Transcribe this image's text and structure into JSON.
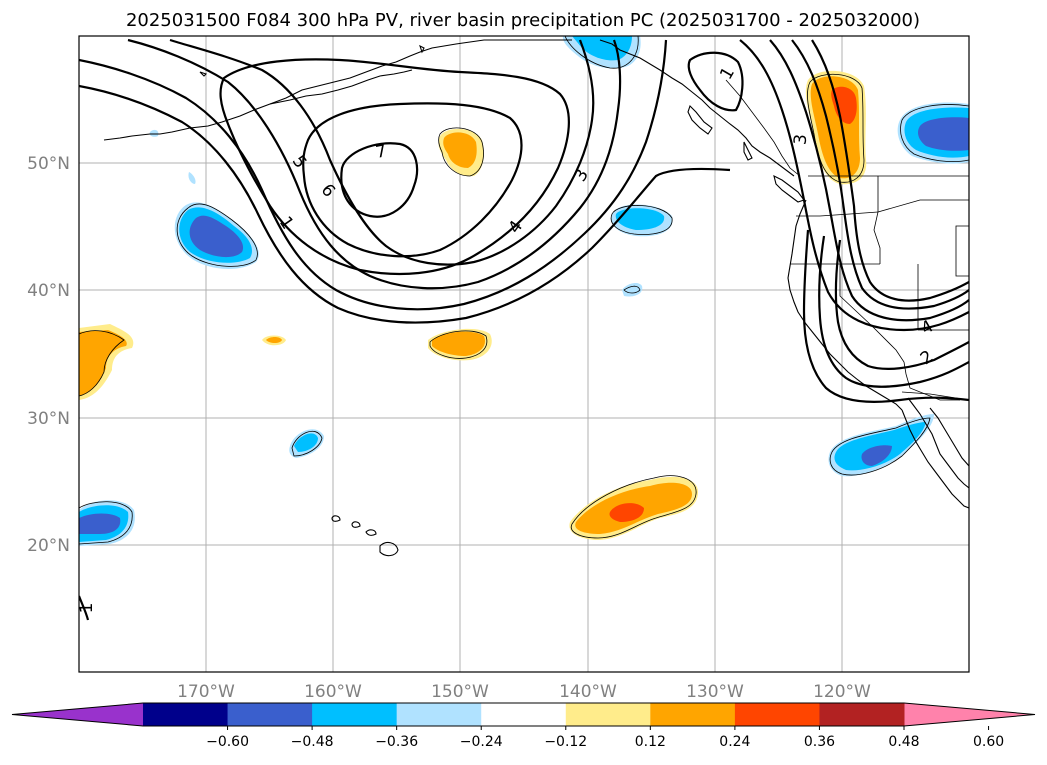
{
  "title": "2025031500 F084 300 hPa PV, river basin precipitation PC (2025031700 - 2025032000)",
  "map": {
    "lon_range": [
      -180,
      -110
    ],
    "lat_range": [
      10,
      60
    ],
    "lat_ticks": [
      {
        "value": 20,
        "label": "20°N"
      },
      {
        "value": 30,
        "label": "30°N"
      },
      {
        "value": 40,
        "label": "40°N"
      },
      {
        "value": 50,
        "label": "50°N"
      }
    ],
    "lon_ticks": [
      {
        "value": -170,
        "label": "170°W"
      },
      {
        "value": -160,
        "label": "160°W"
      },
      {
        "value": -150,
        "label": "150°W"
      },
      {
        "value": -140,
        "label": "140°W"
      },
      {
        "value": -130,
        "label": "130°W"
      },
      {
        "value": -120,
        "label": "120°W"
      }
    ],
    "grid": true
  },
  "pv_contour_labels": [
    "7",
    "6",
    "5",
    "4",
    "3",
    "3",
    "2",
    "1",
    "1",
    "1",
    "4"
  ],
  "colorbar": {
    "colors": [
      "#9932cc",
      "#00008b",
      "#3a5fcd",
      "#00bfff",
      "#b0e2ff",
      "#ffffff",
      "#ffec8b",
      "#ffa500",
      "#ff4500",
      "#b22222",
      "#ff82ab"
    ],
    "tick_labels": [
      "−0.60",
      "−0.48",
      "−0.36",
      "−0.24",
      "−0.12",
      "0.12",
      "0.24",
      "0.36",
      "0.48",
      "0.60"
    ],
    "levels": [
      -0.6,
      -0.48,
      -0.36,
      -0.24,
      -0.12,
      0.12,
      0.24,
      0.36,
      0.48,
      0.6
    ],
    "extend": "both"
  }
}
